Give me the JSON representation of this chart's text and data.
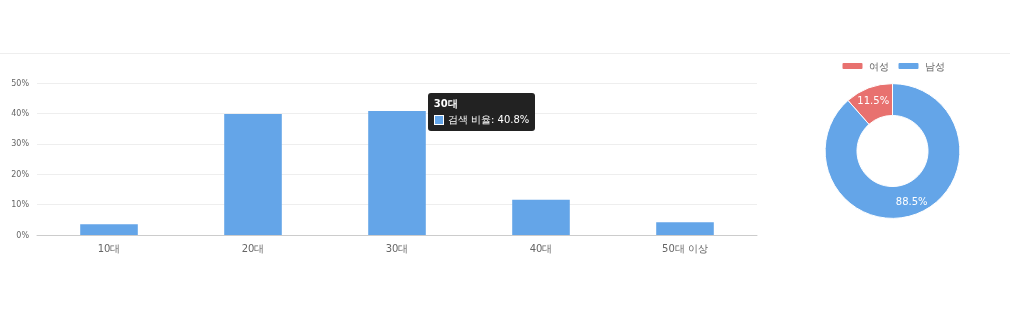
{
  "chart_data": [
    {
      "type": "bar",
      "categories": [
        "10대",
        "20대",
        "30대",
        "40대",
        "50대 이상"
      ],
      "series": [
        {
          "name": "검색 비율:",
          "color": "#64a5e8",
          "values": [
            3.5,
            39.8,
            40.8,
            11.6,
            4.2
          ],
          "value_labels": [
            null,
            null,
            "40.8%",
            null,
            null
          ]
        }
      ],
      "ylim": [
        0,
        50
      ],
      "yticks": [
        {
          "value": 0,
          "label": "0%"
        },
        {
          "value": 10,
          "label": "10%"
        },
        {
          "value": 20,
          "label": "20%"
        },
        {
          "value": 30,
          "label": "30%"
        },
        {
          "value": 40,
          "label": "40%"
        },
        {
          "value": 50,
          "label": "50%"
        }
      ],
      "grid": "y",
      "legend": false,
      "annotations": [
        "30대"
      ]
    },
    {
      "type": "donut",
      "categories": [
        "여성",
        "남성"
      ],
      "values": [
        11.5,
        88.5
      ],
      "colors": [
        "#e8716f",
        "#64a5e8"
      ],
      "legend": "top",
      "value_labels": [
        "11.5%",
        "88.5%"
      ]
    }
  ]
}
